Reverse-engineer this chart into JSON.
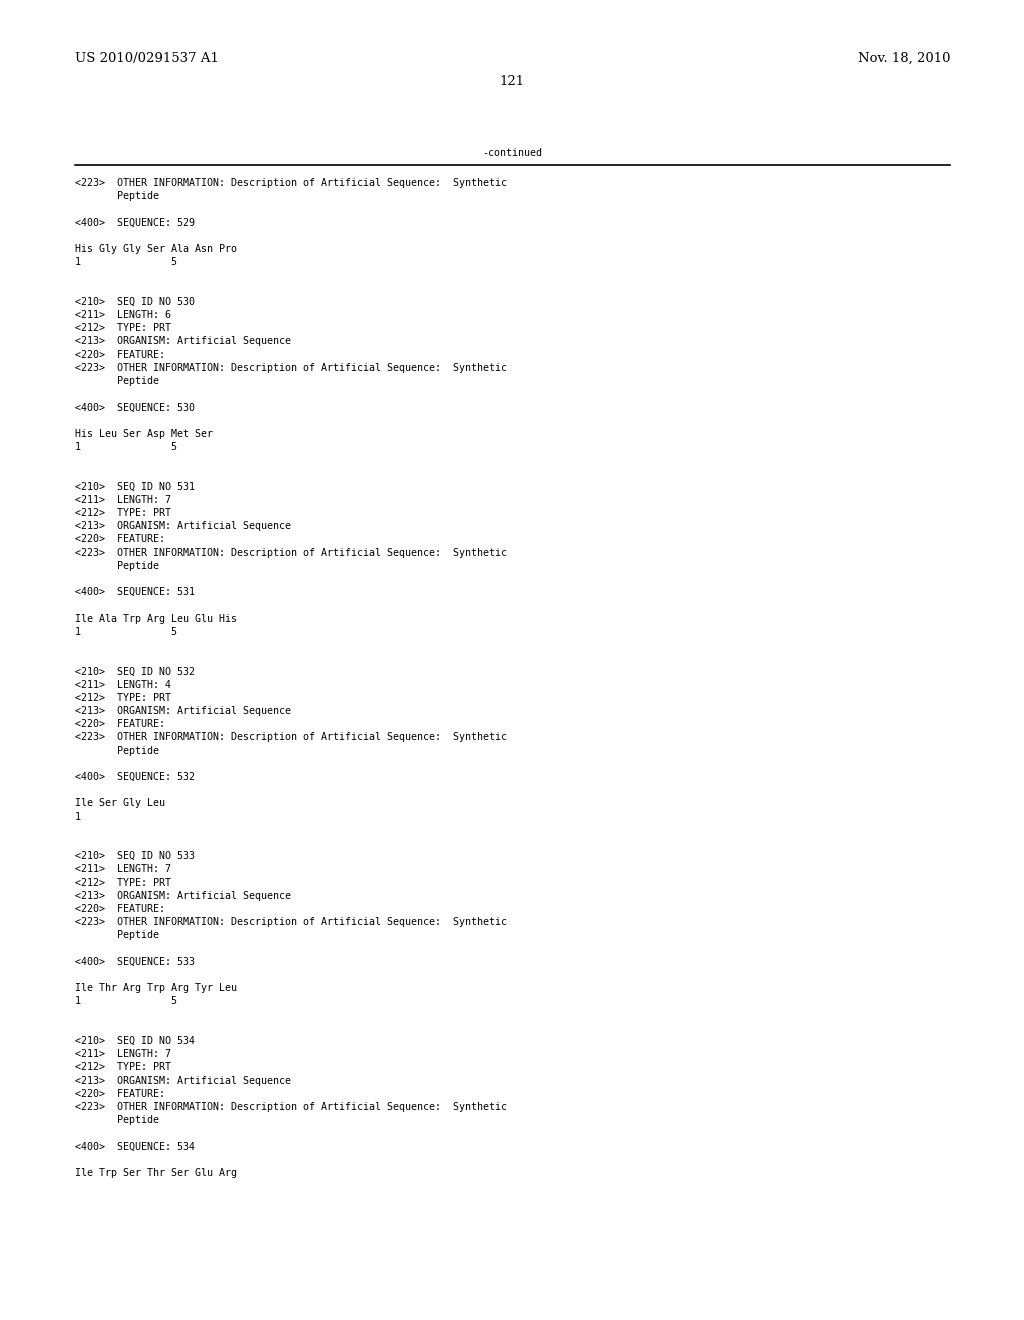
{
  "background_color": "#ffffff",
  "top_left_text": "US 2010/0291537 A1",
  "top_right_text": "Nov. 18, 2010",
  "page_number": "121",
  "continued_text": "-continued",
  "font_size_header": 9.5,
  "font_size_mono": 7.2,
  "content_lines": [
    {
      "text": "<223>  OTHER INFORMATION: Description of Artificial Sequence:  Synthetic"
    },
    {
      "text": "       Peptide"
    },
    {
      "text": ""
    },
    {
      "text": "<400>  SEQUENCE: 529"
    },
    {
      "text": ""
    },
    {
      "text": "His Gly Gly Ser Ala Asn Pro"
    },
    {
      "text": "1               5"
    },
    {
      "text": ""
    },
    {
      "text": ""
    },
    {
      "text": "<210>  SEQ ID NO 530"
    },
    {
      "text": "<211>  LENGTH: 6"
    },
    {
      "text": "<212>  TYPE: PRT"
    },
    {
      "text": "<213>  ORGANISM: Artificial Sequence"
    },
    {
      "text": "<220>  FEATURE:"
    },
    {
      "text": "<223>  OTHER INFORMATION: Description of Artificial Sequence:  Synthetic"
    },
    {
      "text": "       Peptide"
    },
    {
      "text": ""
    },
    {
      "text": "<400>  SEQUENCE: 530"
    },
    {
      "text": ""
    },
    {
      "text": "His Leu Ser Asp Met Ser"
    },
    {
      "text": "1               5"
    },
    {
      "text": ""
    },
    {
      "text": ""
    },
    {
      "text": "<210>  SEQ ID NO 531"
    },
    {
      "text": "<211>  LENGTH: 7"
    },
    {
      "text": "<212>  TYPE: PRT"
    },
    {
      "text": "<213>  ORGANISM: Artificial Sequence"
    },
    {
      "text": "<220>  FEATURE:"
    },
    {
      "text": "<223>  OTHER INFORMATION: Description of Artificial Sequence:  Synthetic"
    },
    {
      "text": "       Peptide"
    },
    {
      "text": ""
    },
    {
      "text": "<400>  SEQUENCE: 531"
    },
    {
      "text": ""
    },
    {
      "text": "Ile Ala Trp Arg Leu Glu His"
    },
    {
      "text": "1               5"
    },
    {
      "text": ""
    },
    {
      "text": ""
    },
    {
      "text": "<210>  SEQ ID NO 532"
    },
    {
      "text": "<211>  LENGTH: 4"
    },
    {
      "text": "<212>  TYPE: PRT"
    },
    {
      "text": "<213>  ORGANISM: Artificial Sequence"
    },
    {
      "text": "<220>  FEATURE:"
    },
    {
      "text": "<223>  OTHER INFORMATION: Description of Artificial Sequence:  Synthetic"
    },
    {
      "text": "       Peptide"
    },
    {
      "text": ""
    },
    {
      "text": "<400>  SEQUENCE: 532"
    },
    {
      "text": ""
    },
    {
      "text": "Ile Ser Gly Leu"
    },
    {
      "text": "1"
    },
    {
      "text": ""
    },
    {
      "text": ""
    },
    {
      "text": "<210>  SEQ ID NO 533"
    },
    {
      "text": "<211>  LENGTH: 7"
    },
    {
      "text": "<212>  TYPE: PRT"
    },
    {
      "text": "<213>  ORGANISM: Artificial Sequence"
    },
    {
      "text": "<220>  FEATURE:"
    },
    {
      "text": "<223>  OTHER INFORMATION: Description of Artificial Sequence:  Synthetic"
    },
    {
      "text": "       Peptide"
    },
    {
      "text": ""
    },
    {
      "text": "<400>  SEQUENCE: 533"
    },
    {
      "text": ""
    },
    {
      "text": "Ile Thr Arg Trp Arg Tyr Leu"
    },
    {
      "text": "1               5"
    },
    {
      "text": ""
    },
    {
      "text": ""
    },
    {
      "text": "<210>  SEQ ID NO 534"
    },
    {
      "text": "<211>  LENGTH: 7"
    },
    {
      "text": "<212>  TYPE: PRT"
    },
    {
      "text": "<213>  ORGANISM: Artificial Sequence"
    },
    {
      "text": "<220>  FEATURE:"
    },
    {
      "text": "<223>  OTHER INFORMATION: Description of Artificial Sequence:  Synthetic"
    },
    {
      "text": "       Peptide"
    },
    {
      "text": ""
    },
    {
      "text": "<400>  SEQUENCE: 534"
    },
    {
      "text": ""
    },
    {
      "text": "Ile Trp Ser Thr Ser Glu Arg"
    }
  ]
}
